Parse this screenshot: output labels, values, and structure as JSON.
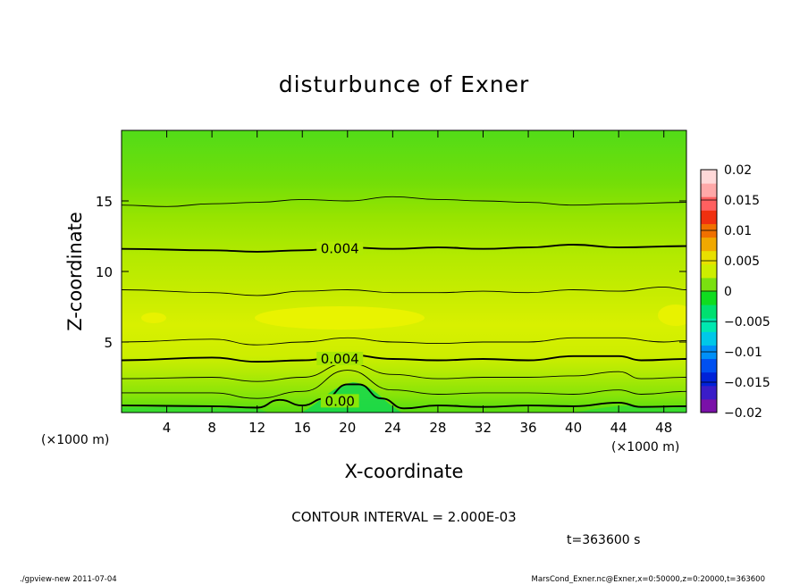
{
  "chart_data": {
    "type": "contour",
    "title": "disturbunce of Exner",
    "xlabel": "X-coordinate",
    "ylabel": "Z-coordinate",
    "x_unit": "(×1000 m)",
    "x_unit_right": "(×1000 m)",
    "y_unit": "(×1000 m)",
    "xlim": [
      0,
      50
    ],
    "ylim": [
      0,
      20
    ],
    "x_ticks": [
      4,
      8,
      12,
      16,
      20,
      24,
      28,
      32,
      36,
      40,
      44,
      48
    ],
    "y_ticks": [
      5,
      10,
      15
    ],
    "contour_interval_text": "CONTOUR INTERVAL = 2.000E-03",
    "time_text": "t=363600 s",
    "contour_labels": [
      {
        "text": "0.004",
        "x": 16,
        "z": 11.6
      },
      {
        "text": "0.004",
        "x": 16,
        "z": 3.8
      },
      {
        "text": "0.00",
        "x": 16,
        "z": 0.8
      }
    ],
    "contours": [
      {
        "level": 0.0,
        "bold": true,
        "points": [
          [
            0,
            0.5
          ],
          [
            8,
            0.45
          ],
          [
            12,
            0.35
          ],
          [
            14,
            0.9
          ],
          [
            16,
            0.5
          ],
          [
            18,
            1.0
          ],
          [
            20,
            2.0
          ],
          [
            21,
            2.0
          ],
          [
            23,
            1.0
          ],
          [
            25,
            0.3
          ],
          [
            28,
            0.5
          ],
          [
            32,
            0.4
          ],
          [
            36,
            0.5
          ],
          [
            40,
            0.45
          ],
          [
            44,
            0.7
          ],
          [
            46,
            0.4
          ],
          [
            50,
            0.45
          ]
        ]
      },
      {
        "level": 0.002,
        "bold": false,
        "points": [
          [
            0,
            1.4
          ],
          [
            8,
            1.4
          ],
          [
            12,
            1.0
          ],
          [
            16,
            1.5
          ],
          [
            20,
            3.0
          ],
          [
            24,
            1.6
          ],
          [
            28,
            1.3
          ],
          [
            32,
            1.4
          ],
          [
            36,
            1.4
          ],
          [
            40,
            1.3
          ],
          [
            44,
            1.6
          ],
          [
            46,
            1.3
          ],
          [
            50,
            1.5
          ]
        ]
      },
      {
        "level": 0.004,
        "bold": false,
        "points": [
          [
            0,
            2.4
          ],
          [
            8,
            2.5
          ],
          [
            12,
            2.2
          ],
          [
            16,
            2.5
          ],
          [
            20,
            3.5
          ],
          [
            24,
            2.7
          ],
          [
            28,
            2.4
          ],
          [
            32,
            2.5
          ],
          [
            36,
            2.5
          ],
          [
            40,
            2.6
          ],
          [
            44,
            2.9
          ],
          [
            46,
            2.4
          ],
          [
            50,
            2.5
          ]
        ]
      },
      {
        "level": 0.004,
        "bold": true,
        "points": [
          [
            0,
            3.7
          ],
          [
            8,
            3.9
          ],
          [
            12,
            3.6
          ],
          [
            16,
            3.7
          ],
          [
            20,
            4.1
          ],
          [
            24,
            3.8
          ],
          [
            28,
            3.7
          ],
          [
            32,
            3.8
          ],
          [
            36,
            3.7
          ],
          [
            40,
            4.0
          ],
          [
            44,
            4.0
          ],
          [
            46,
            3.7
          ],
          [
            50,
            3.8
          ]
        ]
      },
      {
        "level": 0.006,
        "bold": false,
        "points": [
          [
            0,
            5.0
          ],
          [
            8,
            5.2
          ],
          [
            12,
            4.8
          ],
          [
            16,
            5.0
          ],
          [
            20,
            5.3
          ],
          [
            24,
            5.0
          ],
          [
            28,
            4.9
          ],
          [
            32,
            5.0
          ],
          [
            36,
            5.0
          ],
          [
            40,
            5.3
          ],
          [
            44,
            5.3
          ],
          [
            48,
            5.0
          ],
          [
            50,
            5.1
          ]
        ]
      },
      {
        "level": 0.006,
        "bold": false,
        "points": [
          [
            0,
            8.7
          ],
          [
            8,
            8.5
          ],
          [
            12,
            8.3
          ],
          [
            16,
            8.6
          ],
          [
            20,
            8.7
          ],
          [
            24,
            8.5
          ],
          [
            28,
            8.5
          ],
          [
            32,
            8.6
          ],
          [
            36,
            8.5
          ],
          [
            40,
            8.7
          ],
          [
            44,
            8.6
          ],
          [
            48,
            8.9
          ],
          [
            50,
            8.7
          ]
        ]
      },
      {
        "level": 0.004,
        "bold": true,
        "points": [
          [
            0,
            11.6
          ],
          [
            8,
            11.5
          ],
          [
            12,
            11.4
          ],
          [
            16,
            11.5
          ],
          [
            20,
            11.7
          ],
          [
            24,
            11.6
          ],
          [
            28,
            11.7
          ],
          [
            32,
            11.6
          ],
          [
            36,
            11.7
          ],
          [
            40,
            11.9
          ],
          [
            44,
            11.7
          ],
          [
            50,
            11.8
          ]
        ]
      },
      {
        "level": 0.002,
        "bold": false,
        "points": [
          [
            0,
            14.7
          ],
          [
            4,
            14.6
          ],
          [
            8,
            14.8
          ],
          [
            12,
            14.9
          ],
          [
            16,
            15.1
          ],
          [
            20,
            15.0
          ],
          [
            24,
            15.3
          ],
          [
            28,
            15.1
          ],
          [
            32,
            15.0
          ],
          [
            36,
            14.9
          ],
          [
            40,
            14.7
          ],
          [
            44,
            14.8
          ],
          [
            50,
            14.9
          ]
        ]
      }
    ],
    "colorbar": {
      "tick_labels": [
        "0.02",
        "0.015",
        "0.01",
        "0.005",
        "0",
        "−0.005",
        "−0.01",
        "−0.015",
        "−0.02"
      ],
      "range": [
        -0.02,
        0.02
      ],
      "colors": [
        "#7a11a8",
        "#3a1dc8",
        "#0022d8",
        "#0050f0",
        "#0090f8",
        "#00c8e8",
        "#00e8b0",
        "#00e070",
        "#10dc20",
        "#7ae010",
        "#ccee00",
        "#e8e000",
        "#f0a800",
        "#f07000",
        "#f03010",
        "#ff6060",
        "#ffa8a8",
        "#ffd8d8"
      ]
    }
  },
  "footer": {
    "left": "./gpview-new  2011-07-04",
    "right": "MarsCond_Exner.nc@Exner,x=0:50000,z=0:20000,t=363600"
  }
}
